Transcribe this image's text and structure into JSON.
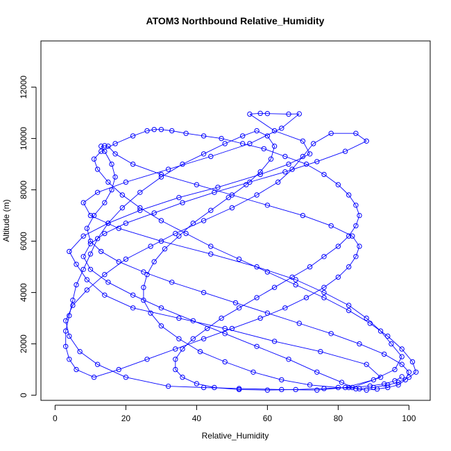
{
  "chart_data": {
    "type": "line",
    "title": "ATOM3 Northbound Relative_Humidity",
    "xlabel": "Relative_Humidity",
    "ylabel": "Altitude (m)",
    "xlim": [
      -4,
      106
    ],
    "ylim": [
      -200,
      13800
    ],
    "xticks": [
      "0",
      "20",
      "40",
      "60",
      "80",
      "100"
    ],
    "yticks": [
      "0",
      "2000",
      "4000",
      "6000",
      "8000",
      "10000",
      "12000"
    ],
    "marker": "open-circle",
    "color": "#0000ff",
    "series": [
      {
        "values": [
          [
            84,
            300
          ],
          [
            92,
            700
          ],
          [
            88,
            1200
          ],
          [
            75,
            1700
          ],
          [
            62,
            2100
          ],
          [
            48,
            2600
          ],
          [
            35,
            3000
          ],
          [
            22,
            3400
          ],
          [
            14,
            3900
          ],
          [
            9,
            4500
          ],
          [
            6,
            5100
          ],
          [
            4,
            5600
          ],
          [
            8,
            6200
          ],
          [
            15,
            6700
          ],
          [
            24,
            7200
          ],
          [
            35,
            7700
          ],
          [
            46,
            8100
          ],
          [
            58,
            8600
          ],
          [
            66,
            9000
          ],
          [
            72,
            9400
          ],
          [
            70,
            9900
          ],
          [
            62,
            10300
          ],
          [
            55,
            10950
          ],
          [
            58,
            10980
          ],
          [
            60,
            10970
          ],
          [
            66,
            10950
          ],
          [
            69,
            10960
          ],
          [
            64,
            10400
          ],
          [
            55,
            9800
          ],
          [
            44,
            9300
          ],
          [
            32,
            8800
          ],
          [
            20,
            8300
          ],
          [
            12,
            7900
          ],
          [
            8,
            7500
          ],
          [
            10,
            7000
          ],
          [
            18,
            6500
          ],
          [
            30,
            6000
          ],
          [
            44,
            5500
          ],
          [
            57,
            5000
          ],
          [
            68,
            4500
          ],
          [
            76,
            4000
          ],
          [
            83,
            3500
          ],
          [
            88,
            3000
          ],
          [
            92,
            2500
          ],
          [
            95,
            2000
          ],
          [
            98,
            1500
          ],
          [
            96,
            1000
          ],
          [
            90,
            600
          ],
          [
            82,
            300
          ],
          [
            74,
            200
          ],
          [
            64,
            220
          ],
          [
            52,
            260
          ],
          [
            42,
            300
          ],
          [
            32,
            350
          ],
          [
            20,
            700
          ],
          [
            12,
            1200
          ],
          [
            7,
            1700
          ],
          [
            4,
            2300
          ],
          [
            3,
            2900
          ],
          [
            5,
            3500
          ],
          [
            9,
            4100
          ],
          [
            14,
            4700
          ],
          [
            20,
            5300
          ],
          [
            27,
            5800
          ],
          [
            34,
            6300
          ],
          [
            42,
            6800
          ],
          [
            50,
            7300
          ],
          [
            57,
            7800
          ],
          [
            63,
            8300
          ],
          [
            67,
            8800
          ],
          [
            70,
            9300
          ],
          [
            73,
            9800
          ],
          [
            78,
            10200
          ],
          [
            85,
            10200
          ],
          [
            88,
            9900
          ],
          [
            82,
            9500
          ],
          [
            74,
            9100
          ],
          [
            65,
            8700
          ],
          [
            55,
            8300
          ],
          [
            45,
            7900
          ],
          [
            36,
            7500
          ],
          [
            28,
            7100
          ],
          [
            20,
            6700
          ],
          [
            14,
            6300
          ],
          [
            10,
            5900
          ],
          [
            8,
            5400
          ],
          [
            10,
            4900
          ],
          [
            15,
            4400
          ],
          [
            22,
            3900
          ],
          [
            30,
            3400
          ],
          [
            39,
            2900
          ],
          [
            48,
            2400
          ],
          [
            57,
            1900
          ],
          [
            66,
            1400
          ],
          [
            74,
            900
          ],
          [
            81,
            500
          ],
          [
            85,
            250
          ],
          [
            88,
            200
          ],
          [
            91,
            240
          ],
          [
            94,
            300
          ],
          [
            97,
            400
          ],
          [
            99,
            600
          ],
          [
            100,
            900
          ],
          [
            98,
            1200
          ],
          [
            93,
            1600
          ],
          [
            86,
            2000
          ],
          [
            78,
            2400
          ],
          [
            69,
            2800
          ],
          [
            60,
            3200
          ],
          [
            51,
            3600
          ],
          [
            42,
            4000
          ],
          [
            33,
            4400
          ],
          [
            25,
            4800
          ],
          [
            18,
            5200
          ],
          [
            13,
            5600
          ],
          [
            10,
            6000
          ],
          [
            9,
            6500
          ],
          [
            11,
            7000
          ],
          [
            14,
            7500
          ],
          [
            16,
            8000
          ],
          [
            17,
            8500
          ],
          [
            16,
            9000
          ],
          [
            14,
            9500
          ],
          [
            13,
            9700
          ],
          [
            14,
            9720
          ],
          [
            15,
            9700
          ],
          [
            17,
            9400
          ],
          [
            22,
            9000
          ],
          [
            30,
            8600
          ],
          [
            40,
            8200
          ],
          [
            50,
            7800
          ],
          [
            60,
            7400
          ],
          [
            70,
            7000
          ],
          [
            78,
            6600
          ],
          [
            84,
            6200
          ],
          [
            86,
            5800
          ],
          [
            85,
            5400
          ],
          [
            83,
            5000
          ],
          [
            80,
            4600
          ],
          [
            76,
            4200
          ],
          [
            71,
            3800
          ],
          [
            65,
            3400
          ],
          [
            58,
            3000
          ],
          [
            50,
            2600
          ],
          [
            42,
            2200
          ],
          [
            34,
            1800
          ],
          [
            26,
            1400
          ],
          [
            18,
            1000
          ],
          [
            11,
            700
          ],
          [
            6,
            1000
          ],
          [
            4,
            1400
          ],
          [
            3,
            1900
          ],
          [
            3,
            2500
          ],
          [
            4,
            3100
          ],
          [
            5,
            3700
          ],
          [
            6,
            4300
          ],
          [
            8,
            4900
          ],
          [
            10,
            5500
          ],
          [
            12,
            6100
          ],
          [
            15,
            6700
          ],
          [
            19,
            7300
          ],
          [
            24,
            7900
          ],
          [
            30,
            8500
          ],
          [
            36,
            9000
          ],
          [
            42,
            9400
          ],
          [
            48,
            9800
          ],
          [
            53,
            10100
          ],
          [
            57,
            10300
          ],
          [
            60,
            10100
          ],
          [
            62,
            9700
          ],
          [
            61,
            9200
          ],
          [
            58,
            8700
          ],
          [
            54,
            8200
          ],
          [
            49,
            7700
          ],
          [
            44,
            7200
          ],
          [
            39,
            6700
          ],
          [
            35,
            6200
          ],
          [
            31,
            5700
          ],
          [
            28,
            5200
          ],
          [
            26,
            4700
          ],
          [
            25,
            4200
          ],
          [
            25,
            3700
          ],
          [
            27,
            3200
          ],
          [
            30,
            2700
          ],
          [
            35,
            2200
          ],
          [
            41,
            1700
          ],
          [
            48,
            1300
          ],
          [
            56,
            900
          ],
          [
            64,
            600
          ],
          [
            72,
            400
          ],
          [
            80,
            300
          ],
          [
            86,
            250
          ],
          [
            90,
            300
          ],
          [
            94,
            400
          ],
          [
            97,
            500
          ],
          [
            100,
            700
          ],
          [
            102,
            900
          ],
          [
            101,
            1300
          ],
          [
            98,
            1800
          ],
          [
            94,
            2300
          ],
          [
            89,
            2800
          ],
          [
            83,
            3300
          ],
          [
            76,
            3800
          ],
          [
            68,
            4300
          ],
          [
            60,
            4800
          ],
          [
            52,
            5300
          ],
          [
            44,
            5800
          ],
          [
            37,
            6300
          ],
          [
            30,
            6800
          ],
          [
            24,
            7300
          ],
          [
            19,
            7800
          ],
          [
            15,
            8300
          ],
          [
            12,
            8800
          ],
          [
            11,
            9200
          ],
          [
            13,
            9500
          ],
          [
            17,
            9800
          ],
          [
            22,
            10100
          ],
          [
            26,
            10300
          ],
          [
            28,
            10350
          ],
          [
            30,
            10350
          ],
          [
            33,
            10300
          ],
          [
            37,
            10200
          ],
          [
            42,
            10100
          ],
          [
            47,
            10000
          ],
          [
            53,
            9800
          ],
          [
            59,
            9600
          ],
          [
            65,
            9300
          ],
          [
            71,
            9000
          ],
          [
            76,
            8600
          ],
          [
            80,
            8200
          ],
          [
            83,
            7800
          ],
          [
            85,
            7400
          ],
          [
            86,
            7000
          ],
          [
            85,
            6600
          ],
          [
            83,
            6200
          ],
          [
            80,
            5800
          ],
          [
            76,
            5400
          ],
          [
            72,
            5000
          ],
          [
            67,
            4600
          ],
          [
            62,
            4200
          ],
          [
            57,
            3800
          ],
          [
            52,
            3400
          ],
          [
            47,
            3000
          ],
          [
            43,
            2600
          ],
          [
            39,
            2200
          ],
          [
            36,
            1800
          ],
          [
            34,
            1400
          ],
          [
            34,
            1000
          ],
          [
            36,
            700
          ],
          [
            40,
            450
          ],
          [
            45,
            300
          ],
          [
            52,
            220
          ],
          [
            60,
            200
          ],
          [
            68,
            220
          ],
          [
            76,
            260
          ],
          [
            83,
            300
          ],
          [
            89,
            360
          ],
          [
            93,
            440
          ],
          [
            96,
            560
          ],
          [
            98,
            720
          ]
        ]
      }
    ]
  }
}
